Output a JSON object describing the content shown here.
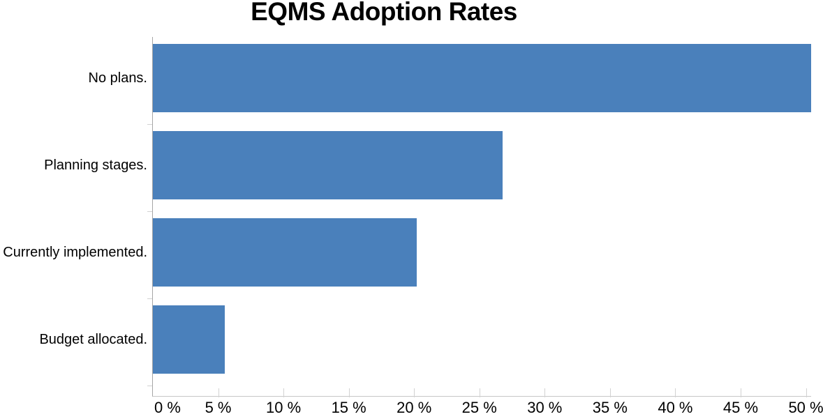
{
  "chart_data": {
    "type": "bar",
    "orientation": "horizontal",
    "title": "EQMS Adoption Rates",
    "categories": [
      "No plans.",
      "Planning stages.",
      "Currently implemented.",
      "Budget allocated."
    ],
    "values": [
      50.4,
      26.8,
      20.2,
      5.5
    ],
    "unit": "%",
    "xlabel": "",
    "ylabel": "",
    "xlim": [
      0,
      50.4
    ],
    "x_ticks": [
      {
        "value": 0,
        "label": "0 %"
      },
      {
        "value": 5,
        "label": "5 %"
      },
      {
        "value": 10,
        "label": "10 %"
      },
      {
        "value": 15,
        "label": "15 %"
      },
      {
        "value": 20,
        "label": "20 %"
      },
      {
        "value": 25,
        "label": "25 %"
      },
      {
        "value": 30,
        "label": "30 %"
      },
      {
        "value": 35,
        "label": "35 %"
      },
      {
        "value": 40,
        "label": "40 %"
      },
      {
        "value": 45,
        "label": "45 %"
      },
      {
        "value": 50,
        "label": "50 %"
      }
    ],
    "grid": false,
    "legend": null,
    "colors": {
      "bar": "#4a80bb",
      "y_axis_line": "#a6a6a6",
      "x_axis_line": "#c6c6c6",
      "tick": "#d2d2d2",
      "text": "#000000",
      "background": "#ffffff"
    }
  }
}
